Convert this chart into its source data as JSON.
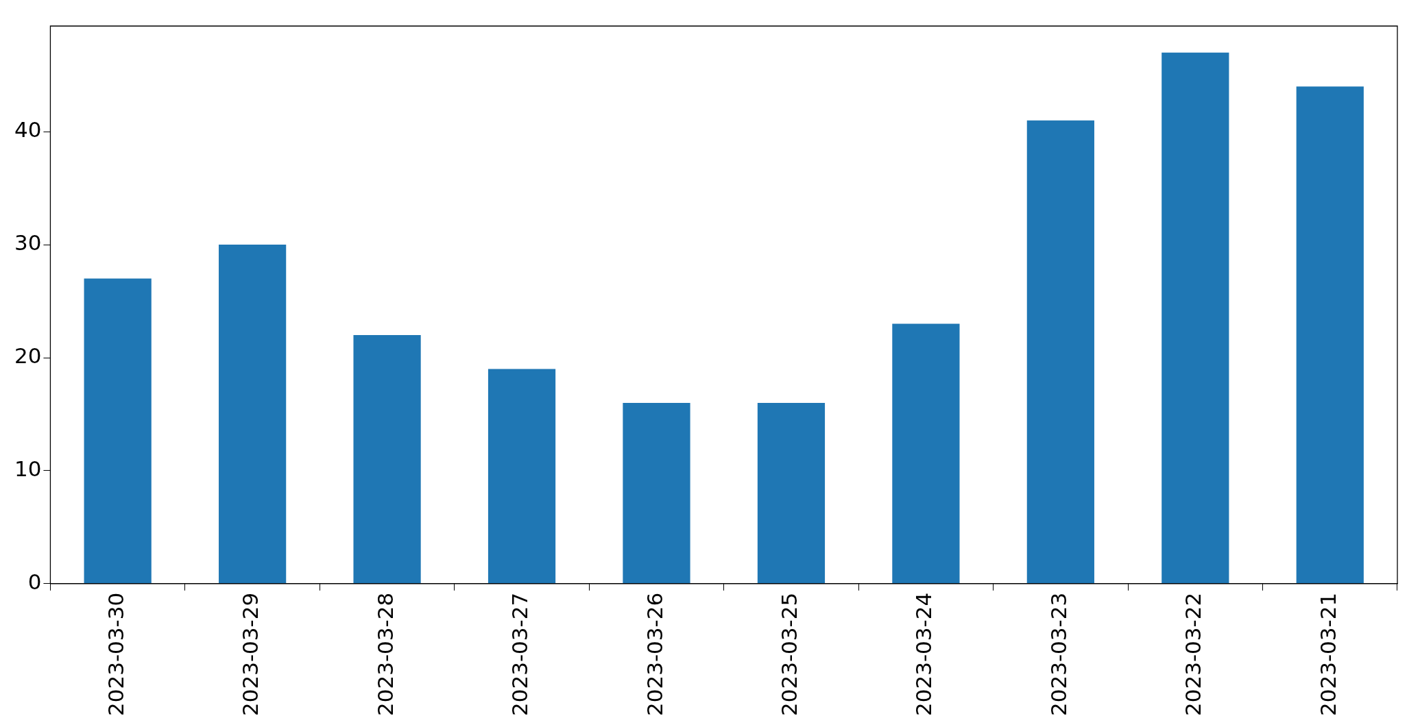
{
  "chart_data": {
    "type": "bar",
    "categories": [
      "2023-03-30",
      "2023-03-29",
      "2023-03-28",
      "2023-03-27",
      "2023-03-26",
      "2023-03-25",
      "2023-03-24",
      "2023-03-23",
      "2023-03-22",
      "2023-03-21"
    ],
    "values": [
      27,
      30,
      22,
      19,
      16,
      16,
      23,
      41,
      47,
      44
    ],
    "color": "#1f77b4",
    "ylim": [
      0,
      49.35
    ],
    "yticks": [
      0,
      10,
      20,
      30,
      40
    ]
  }
}
